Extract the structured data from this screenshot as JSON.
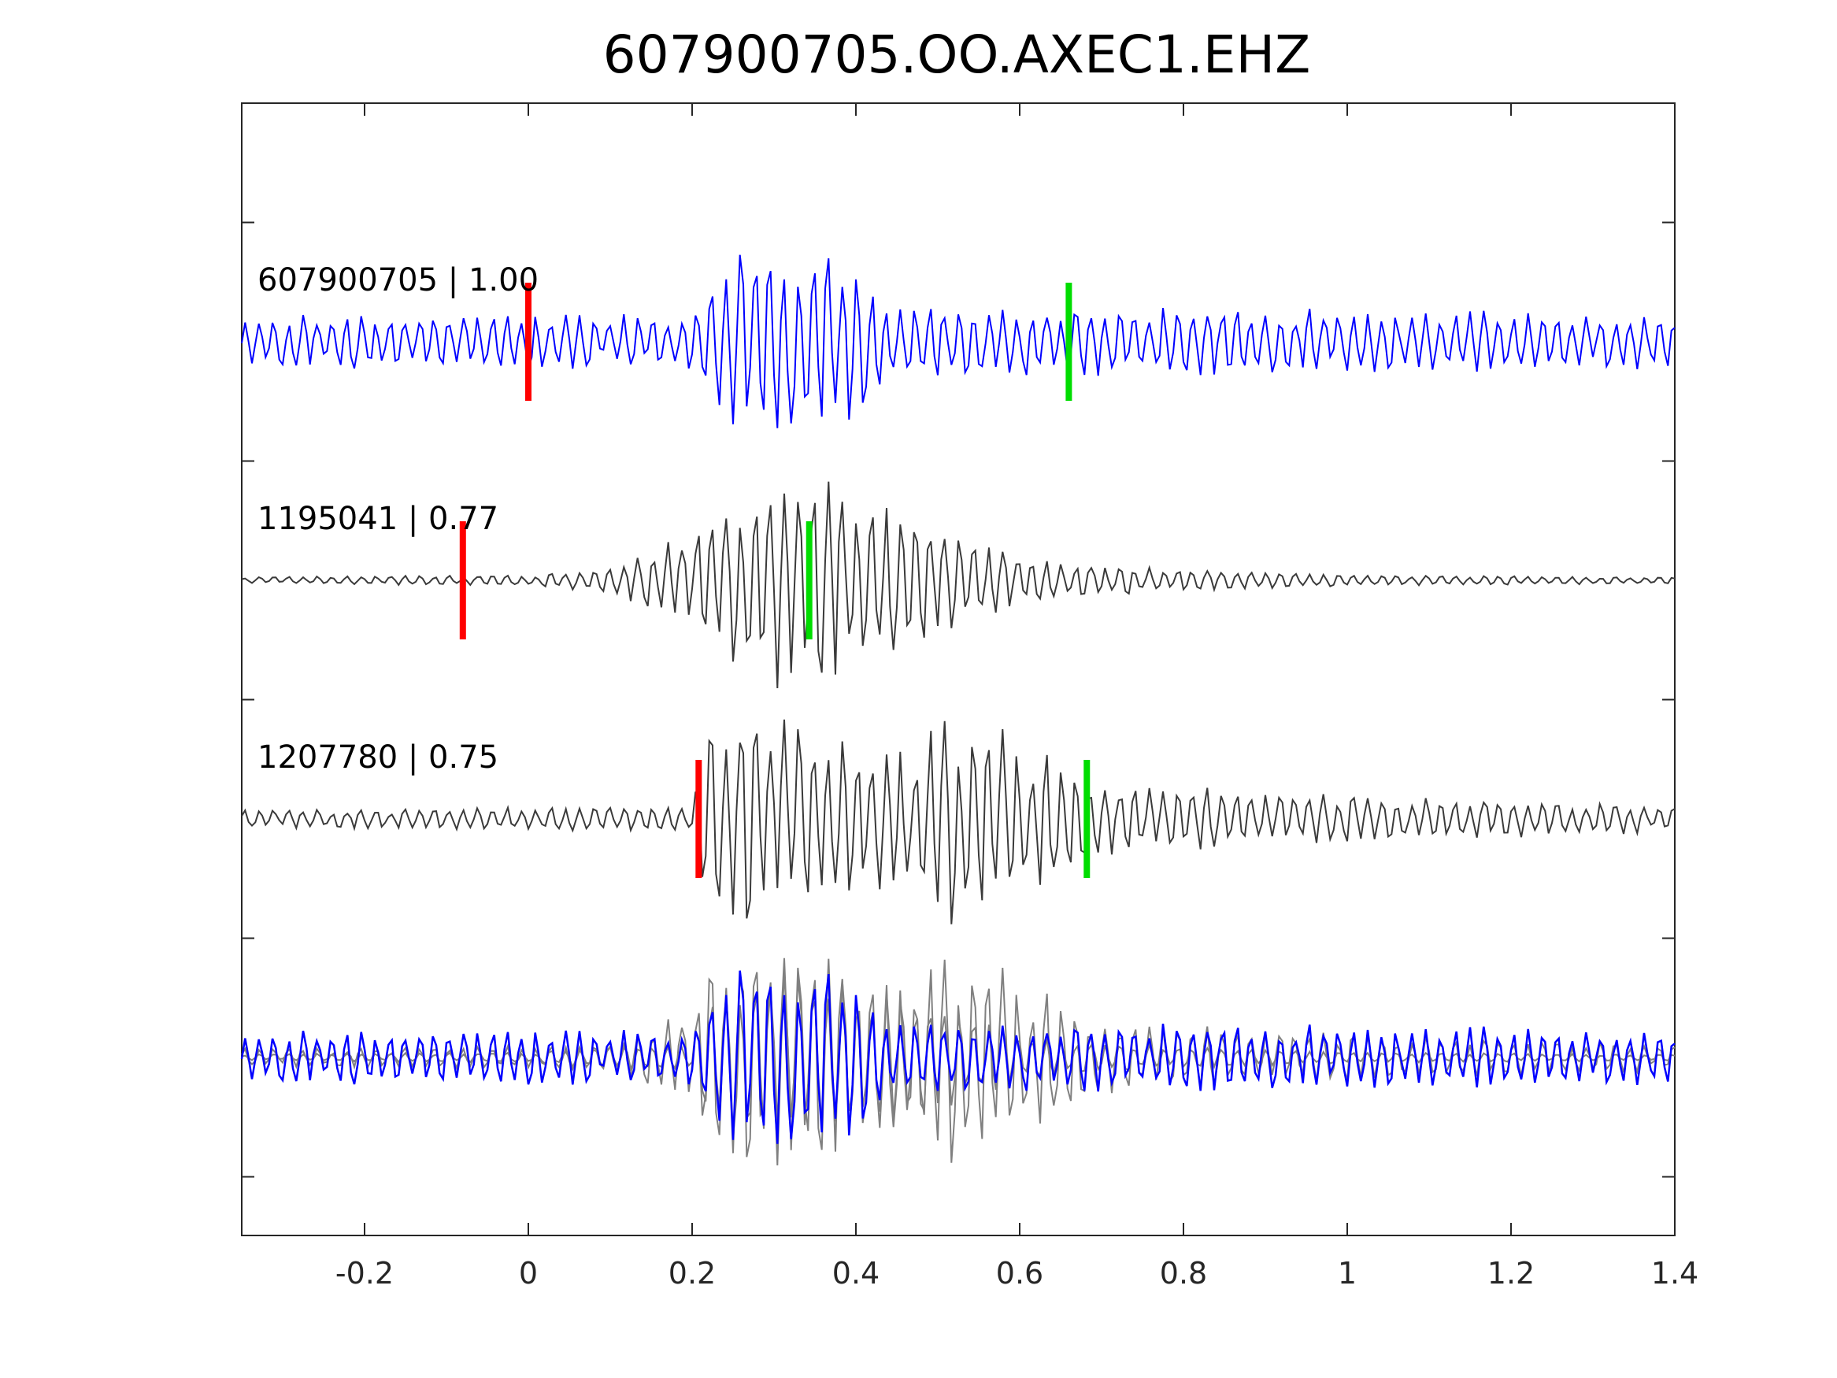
{
  "chart_data": {
    "type": "line",
    "title": "607900705.OO.AXEC1.EHZ",
    "xlabel": "",
    "ylabel": "",
    "xlim": [
      -0.35,
      1.4
    ],
    "x_ticks": [
      "-0.2",
      "0",
      "0.2",
      "0.4",
      "0.6",
      "0.8",
      "1",
      "1.2",
      "1.4"
    ],
    "x_tick_values": [
      -0.2,
      0,
      0.2,
      0.4,
      0.6,
      0.8,
      1,
      1.2,
      1.4
    ],
    "y_ticks": [],
    "grid": false,
    "series": [
      {
        "label": "607900705 | 1.00",
        "color": "#0000ff",
        "offset_row": 1,
        "pick_red": 0.0,
        "pick_green": 0.66,
        "envelope": [
          [
            -0.35,
            0.25
          ],
          [
            0.2,
            0.25
          ],
          [
            0.24,
            0.75
          ],
          [
            0.33,
            1.0
          ],
          [
            0.4,
            0.75
          ],
          [
            0.44,
            0.35
          ],
          [
            1.4,
            0.25
          ]
        ]
      },
      {
        "label": "1195041 | 0.77",
        "color": "#3a3a3a",
        "offset_row": 2,
        "pick_red": -0.08,
        "pick_green": 0.343,
        "envelope": [
          [
            -0.35,
            0.03
          ],
          [
            0.0,
            0.05
          ],
          [
            0.1,
            0.12
          ],
          [
            0.2,
            0.45
          ],
          [
            0.28,
            1.0
          ],
          [
            0.36,
            1.0
          ],
          [
            0.5,
            0.5
          ],
          [
            0.6,
            0.25
          ],
          [
            0.75,
            0.12
          ],
          [
            1.0,
            0.05
          ],
          [
            1.4,
            0.03
          ]
        ]
      },
      {
        "label": "1207780 | 0.75",
        "color": "#3a3a3a",
        "offset_row": 3,
        "pick_red": 0.208,
        "pick_green": 0.682,
        "envelope": [
          [
            -0.35,
            0.08
          ],
          [
            0.2,
            0.12
          ],
          [
            0.22,
            0.9
          ],
          [
            0.26,
            1.0
          ],
          [
            0.45,
            0.7
          ],
          [
            0.52,
            1.0
          ],
          [
            0.65,
            0.6
          ],
          [
            0.7,
            0.35
          ],
          [
            0.9,
            0.25
          ],
          [
            1.4,
            0.12
          ]
        ]
      }
    ],
    "overlay_row": 4
  }
}
